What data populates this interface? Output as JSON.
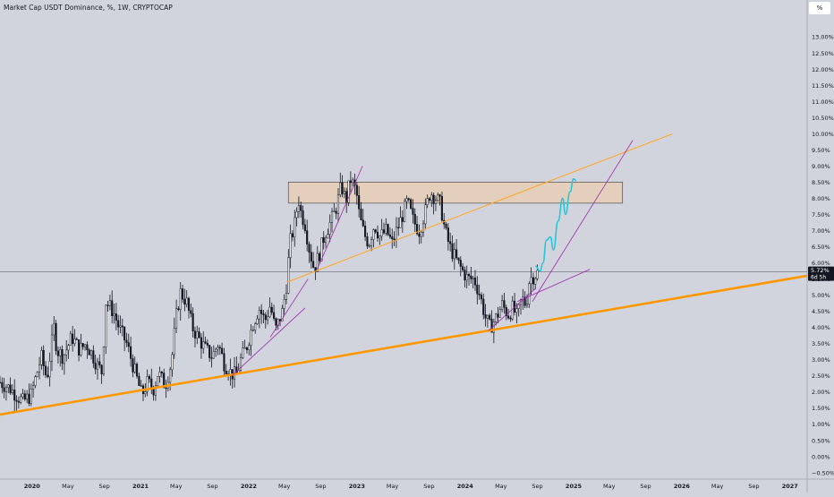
{
  "header": {
    "title": "Market Cap USDT Dominance, %, 1W, CRYPTOCAP",
    "scale_label": "%"
  },
  "price_badge": {
    "value": "5.72%",
    "countdown": "6d 5h"
  },
  "colors": {
    "background": "#d1d4dc",
    "candle": "#131722",
    "major_trendline": "#ff9800",
    "minor_trendline": "#ffa726",
    "support_lines": "#9c27b0",
    "resistance_zone_fill": "#e8cdb0",
    "resistance_zone_border": "#5d5d5d",
    "projection_path": "#26c6da",
    "current_price_line": "#787b86"
  },
  "chart_data": {
    "type": "candlestick",
    "title": "Market Cap USDT Dominance, %, 1W, CRYPTOCAP",
    "timeframe": "1W",
    "ylabel": "%",
    "ylim": [
      -0.7,
      13.7
    ],
    "xlim": [
      "2019-09-15",
      "2027-02-28"
    ],
    "current_value": 5.72,
    "yticks": [
      13.0,
      12.5,
      12.0,
      11.5,
      11.0,
      10.5,
      10.0,
      9.5,
      9.0,
      8.5,
      8.0,
      7.5,
      7.0,
      6.5,
      6.0,
      5.5,
      5.0,
      4.5,
      4.0,
      3.5,
      3.0,
      2.5,
      2.0,
      1.5,
      1.0,
      0.5,
      0.0,
      -0.5
    ],
    "ytick_labels": [
      "13.00%",
      "12.50%",
      "12.00%",
      "11.50%",
      "11.00%",
      "10.50%",
      "10.00%",
      "9.50%",
      "9.00%",
      "8.50%",
      "8.00%",
      "7.50%",
      "7.00%",
      "6.50%",
      "6.00%",
      "5.50%",
      "5.00%",
      "4.50%",
      "4.00%",
      "3.50%",
      "3.00%",
      "2.50%",
      "2.00%",
      "1.50%",
      "1.00%",
      "0.50%",
      "0.00%",
      "−0.50%"
    ],
    "xticks": [
      {
        "label": "2020",
        "date": "2020-01-01",
        "bold": true
      },
      {
        "label": "May",
        "date": "2020-05-01",
        "bold": false
      },
      {
        "label": "Sep",
        "date": "2020-09-01",
        "bold": false
      },
      {
        "label": "2021",
        "date": "2021-01-01",
        "bold": true
      },
      {
        "label": "May",
        "date": "2021-05-01",
        "bold": false
      },
      {
        "label": "Sep",
        "date": "2021-09-01",
        "bold": false
      },
      {
        "label": "2022",
        "date": "2022-01-01",
        "bold": true
      },
      {
        "label": "May",
        "date": "2022-05-01",
        "bold": false
      },
      {
        "label": "Sep",
        "date": "2022-09-01",
        "bold": false
      },
      {
        "label": "2023",
        "date": "2023-01-01",
        "bold": true
      },
      {
        "label": "May",
        "date": "2023-05-01",
        "bold": false
      },
      {
        "label": "Sep",
        "date": "2023-09-01",
        "bold": false
      },
      {
        "label": "2024",
        "date": "2024-01-01",
        "bold": true
      },
      {
        "label": "May",
        "date": "2024-05-01",
        "bold": false
      },
      {
        "label": "Sep",
        "date": "2024-09-01",
        "bold": false
      },
      {
        "label": "2025",
        "date": "2025-01-01",
        "bold": true
      },
      {
        "label": "May",
        "date": "2025-05-01",
        "bold": false
      },
      {
        "label": "Sep",
        "date": "2025-09-01",
        "bold": false
      },
      {
        "label": "2026",
        "date": "2026-01-01",
        "bold": true
      },
      {
        "label": "May",
        "date": "2026-05-01",
        "bold": false
      },
      {
        "label": "Sep",
        "date": "2026-09-01",
        "bold": false
      },
      {
        "label": "2027",
        "date": "2027-01-01",
        "bold": true
      }
    ],
    "series_close": [
      [
        "2019-09-15",
        2.3
      ],
      [
        "2019-10-20",
        2.1
      ],
      [
        "2019-12-01",
        1.7
      ],
      [
        "2019-12-29",
        1.9
      ],
      [
        "2020-02-01",
        3.1
      ],
      [
        "2020-02-20",
        2.4
      ],
      [
        "2020-03-15",
        4.0
      ],
      [
        "2020-03-25",
        3.3
      ],
      [
        "2020-04-15",
        3.1
      ],
      [
        "2020-05-15",
        3.7
      ],
      [
        "2020-06-10",
        3.3
      ],
      [
        "2020-07-01",
        3.5
      ],
      [
        "2020-07-20",
        3.2
      ],
      [
        "2020-08-10",
        2.8
      ],
      [
        "2020-08-25",
        2.6
      ],
      [
        "2020-09-05",
        4.8
      ],
      [
        "2020-10-01",
        4.5
      ],
      [
        "2020-10-20",
        4.0
      ],
      [
        "2020-11-15",
        3.5
      ],
      [
        "2020-12-01",
        3.0
      ],
      [
        "2020-12-20",
        2.4
      ],
      [
        "2021-01-05",
        1.9
      ],
      [
        "2021-01-25",
        2.3
      ],
      [
        "2021-02-15",
        2.1
      ],
      [
        "2021-03-01",
        2.6
      ],
      [
        "2021-03-25",
        2.2
      ],
      [
        "2021-04-15",
        2.9
      ],
      [
        "2021-05-01",
        4.3
      ],
      [
        "2021-05-15",
        5.1
      ],
      [
        "2021-06-05",
        4.8
      ],
      [
        "2021-06-25",
        4.0
      ],
      [
        "2021-07-20",
        3.6
      ],
      [
        "2021-08-10",
        3.3
      ],
      [
        "2021-08-31",
        3.1
      ],
      [
        "2021-09-20",
        3.5
      ],
      [
        "2021-10-10",
        2.9
      ],
      [
        "2021-11-01",
        2.6
      ],
      [
        "2021-11-20",
        2.5
      ],
      [
        "2021-12-05",
        3.0
      ],
      [
        "2021-12-25",
        3.4
      ],
      [
        "2022-01-15",
        4.1
      ],
      [
        "2022-02-05",
        4.6
      ],
      [
        "2022-02-25",
        4.2
      ],
      [
        "2022-03-15",
        4.7
      ],
      [
        "2022-04-01",
        3.9
      ],
      [
        "2022-04-25",
        4.5
      ],
      [
        "2022-05-08",
        5.3
      ],
      [
        "2022-05-20",
        6.6
      ],
      [
        "2022-06-05",
        7.2
      ],
      [
        "2022-06-18",
        8.0
      ],
      [
        "2022-06-25",
        7.6
      ],
      [
        "2022-07-10",
        7.2
      ],
      [
        "2022-07-25",
        6.4
      ],
      [
        "2022-08-10",
        5.8
      ],
      [
        "2022-08-28",
        6.3
      ],
      [
        "2022-09-15",
        6.9
      ],
      [
        "2022-10-01",
        7.2
      ],
      [
        "2022-10-20",
        7.6
      ],
      [
        "2022-11-10",
        8.4
      ],
      [
        "2022-11-25",
        7.9
      ],
      [
        "2022-12-10",
        8.6
      ],
      [
        "2022-12-30",
        8.2
      ],
      [
        "2023-01-10",
        7.4
      ],
      [
        "2023-01-25",
        6.9
      ],
      [
        "2023-02-10",
        6.6
      ],
      [
        "2023-03-01",
        7.2
      ],
      [
        "2023-03-20",
        6.8
      ],
      [
        "2023-04-10",
        7.0
      ],
      [
        "2023-04-30",
        6.6
      ],
      [
        "2023-05-15",
        7.0
      ],
      [
        "2023-06-01",
        7.4
      ],
      [
        "2023-06-20",
        7.9
      ],
      [
        "2023-07-10",
        7.3
      ],
      [
        "2023-07-30",
        7.0
      ],
      [
        "2023-08-20",
        7.6
      ],
      [
        "2023-09-05",
        8.2
      ],
      [
        "2023-09-25",
        8.0
      ],
      [
        "2023-10-10",
        7.8
      ],
      [
        "2023-10-25",
        7.0
      ],
      [
        "2023-11-10",
        6.5
      ],
      [
        "2023-12-01",
        6.1
      ],
      [
        "2023-12-20",
        5.8
      ],
      [
        "2024-01-10",
        5.5
      ],
      [
        "2024-02-01",
        5.5
      ],
      [
        "2024-02-20",
        5.0
      ],
      [
        "2024-03-10",
        4.3
      ],
      [
        "2024-03-25",
        4.0
      ],
      [
        "2024-04-15",
        4.3
      ],
      [
        "2024-05-05",
        4.7
      ],
      [
        "2024-05-25",
        4.4
      ],
      [
        "2024-06-10",
        4.6
      ],
      [
        "2024-06-25",
        4.3
      ],
      [
        "2024-07-10",
        4.9
      ],
      [
        "2024-07-25",
        4.7
      ],
      [
        "2024-08-05",
        5.5
      ],
      [
        "2024-08-20",
        5.6
      ],
      [
        "2024-09-05",
        5.72
      ]
    ],
    "annotations": {
      "resistance_zone": {
        "from": "2022-05-15",
        "to": "2025-06-15",
        "low": 7.85,
        "high": 8.5
      },
      "current_price_line": {
        "value": 5.72
      },
      "major_trendline": {
        "from": [
          "2019-09-15",
          1.3
        ],
        "to": [
          "2027-02-28",
          5.6
        ]
      },
      "minor_trendline": {
        "from": [
          "2022-05-10",
          5.4
        ],
        "to": [
          "2025-12-01",
          10.0
        ]
      },
      "support_lines": [
        {
          "from": [
            "2021-11-05",
            2.5
          ],
          "to": [
            "2022-07-10",
            4.6
          ]
        },
        {
          "from": [
            "2022-03-15",
            3.7
          ],
          "to": [
            "2022-07-20",
            5.5
          ]
        },
        {
          "from": [
            "2022-08-20",
            5.8
          ],
          "to": [
            "2023-01-20",
            9.0
          ]
        },
        {
          "from": [
            "2024-03-20",
            3.9
          ],
          "to": [
            "2024-08-25",
            5.2
          ]
        },
        {
          "from": [
            "2024-06-25",
            4.8
          ],
          "to": [
            "2025-02-25",
            5.8
          ]
        },
        {
          "from": [
            "2024-08-15",
            4.8
          ],
          "to": [
            "2025-07-20",
            9.8
          ]
        }
      ],
      "projection_path": [
        [
          "2024-08-25",
          5.9
        ],
        [
          "2024-09-10",
          5.75
        ],
        [
          "2024-09-20",
          6.0
        ],
        [
          "2024-10-01",
          6.7
        ],
        [
          "2024-10-15",
          6.8
        ],
        [
          "2024-10-25",
          6.4
        ],
        [
          "2024-11-10",
          7.3
        ],
        [
          "2024-11-25",
          8.0
        ],
        [
          "2024-12-05",
          7.5
        ],
        [
          "2024-12-20",
          8.2
        ],
        [
          "2025-01-01",
          8.6
        ],
        [
          "2025-01-10",
          8.55
        ]
      ]
    }
  }
}
